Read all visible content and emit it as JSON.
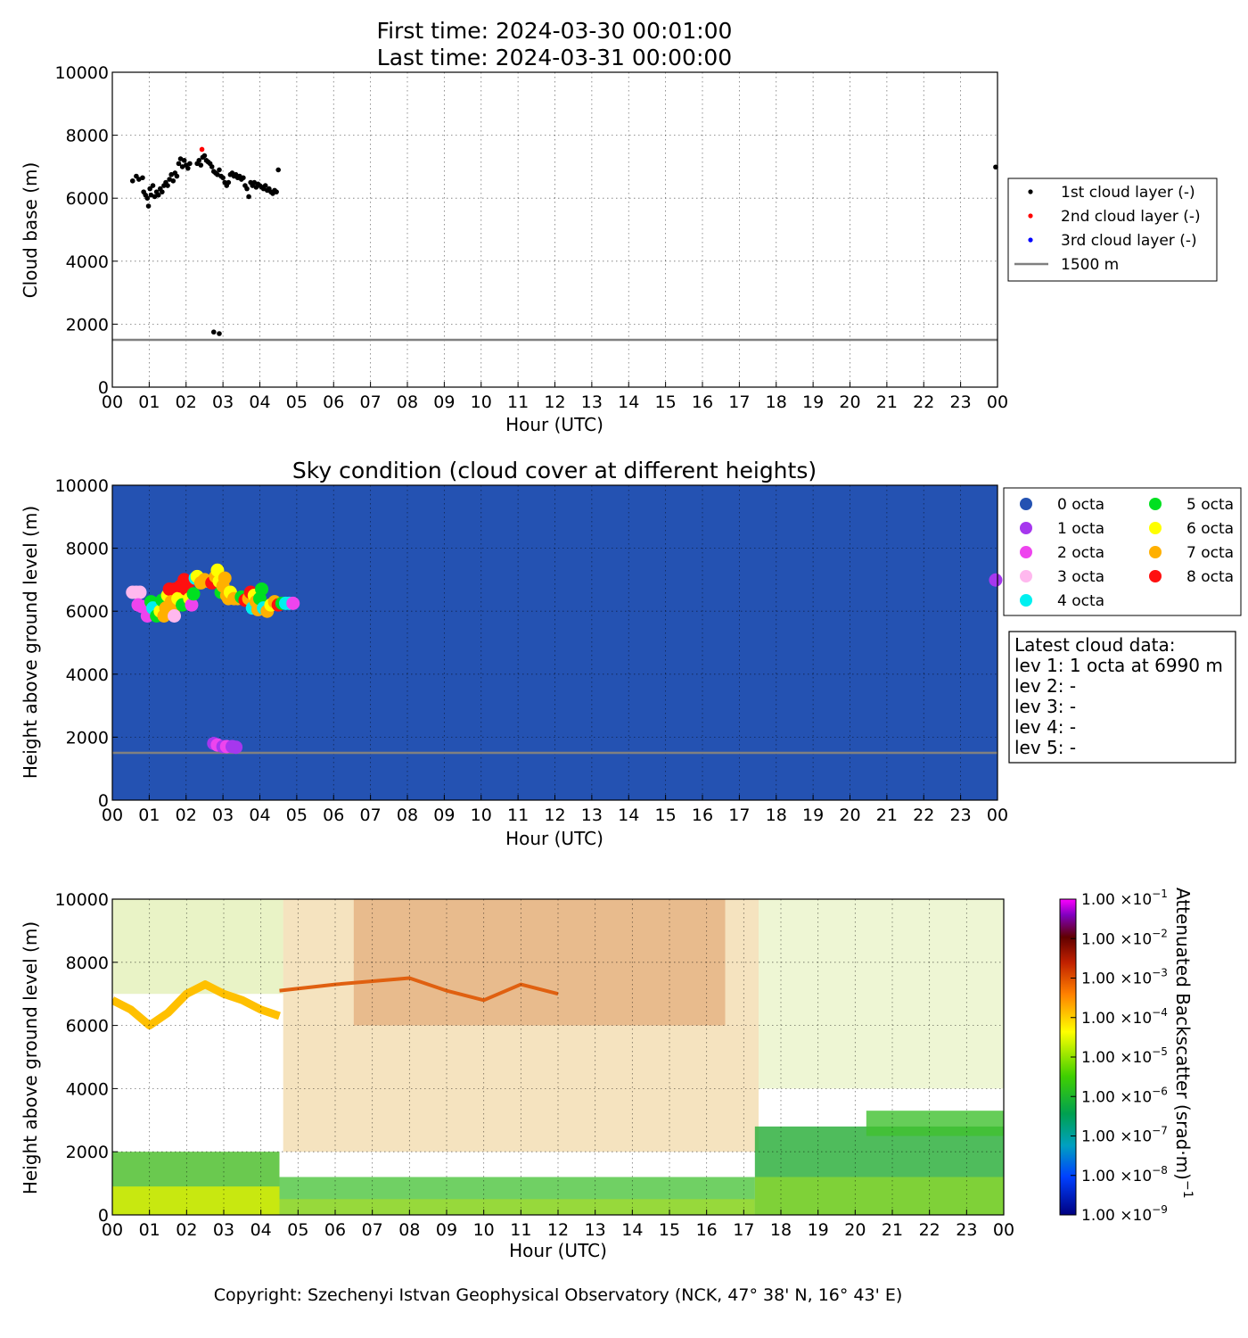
{
  "header": {
    "line1": "First time: 2024-03-30 00:01:00",
    "line2": "Last time: 2024-03-31 00:00:00"
  },
  "footer": {
    "copyright": "Copyright: Szechenyi Istvan Geophysical Observatory (NCK, 47° 38' N, 16° 43' E)"
  },
  "colors": {
    "layer1": "#000000",
    "layer2": "#ff0000",
    "layer3": "#0000ff",
    "ref_line": "#808080",
    "sky_background": "#2452b2"
  },
  "latest_cloud": {
    "title": "Latest cloud data:",
    "lines": [
      "lev 1: 1 octa at 6990 m",
      "lev 2: -",
      "lev 3: -",
      "lev 4: -",
      "lev 5: -"
    ]
  },
  "chart_data": [
    {
      "type": "scatter",
      "title": "",
      "xlabel": "Hour (UTC)",
      "ylabel": "Cloud base (m)",
      "x_tick_labels": [
        "00",
        "01",
        "02",
        "03",
        "04",
        "05",
        "06",
        "07",
        "08",
        "09",
        "10",
        "11",
        "12",
        "13",
        "14",
        "15",
        "16",
        "17",
        "18",
        "19",
        "20",
        "21",
        "22",
        "23",
        "00"
      ],
      "y_ticks": [
        0,
        2000,
        4000,
        6000,
        8000,
        10000
      ],
      "xlim": [
        0,
        24
      ],
      "ylim": [
        0,
        10000
      ],
      "grid": true,
      "legend_position": "right",
      "reference_line": {
        "name": "1500 m",
        "y": 1500
      },
      "series": [
        {
          "name": "1st cloud layer (-)",
          "color": "#000000",
          "points": [
            [
              0.55,
              6550
            ],
            [
              0.65,
              6700
            ],
            [
              0.72,
              6600
            ],
            [
              0.82,
              6650
            ],
            [
              0.85,
              6200
            ],
            [
              0.9,
              6100
            ],
            [
              0.95,
              6000
            ],
            [
              0.98,
              5750
            ],
            [
              1.02,
              6300
            ],
            [
              1.05,
              6100
            ],
            [
              1.1,
              6400
            ],
            [
              1.15,
              6050
            ],
            [
              1.2,
              6200
            ],
            [
              1.25,
              6100
            ],
            [
              1.3,
              6300
            ],
            [
              1.35,
              6200
            ],
            [
              1.4,
              6400
            ],
            [
              1.45,
              6500
            ],
            [
              1.5,
              6400
            ],
            [
              1.55,
              6600
            ],
            [
              1.6,
              6750
            ],
            [
              1.65,
              6550
            ],
            [
              1.7,
              6800
            ],
            [
              1.75,
              6700
            ],
            [
              1.8,
              7100
            ],
            [
              1.85,
              7250
            ],
            [
              1.9,
              7000
            ],
            [
              1.95,
              7200
            ],
            [
              2.0,
              7050
            ],
            [
              2.05,
              6950
            ],
            [
              2.1,
              7100
            ],
            [
              2.3,
              7100
            ],
            [
              2.35,
              7200
            ],
            [
              2.4,
              7050
            ],
            [
              2.45,
              7300
            ],
            [
              2.5,
              7350
            ],
            [
              2.55,
              7200
            ],
            [
              2.6,
              7150
            ],
            [
              2.65,
              7100
            ],
            [
              2.7,
              7000
            ],
            [
              2.75,
              6850
            ],
            [
              2.8,
              6800
            ],
            [
              2.85,
              6750
            ],
            [
              2.9,
              6900
            ],
            [
              2.95,
              6700
            ],
            [
              3.0,
              6650
            ],
            [
              3.05,
              6500
            ],
            [
              3.1,
              6400
            ],
            [
              3.15,
              6500
            ],
            [
              3.2,
              6750
            ],
            [
              3.25,
              6800
            ],
            [
              3.3,
              6700
            ],
            [
              3.35,
              6750
            ],
            [
              3.4,
              6650
            ],
            [
              3.45,
              6700
            ],
            [
              3.5,
              6600
            ],
            [
              3.55,
              6650
            ],
            [
              3.6,
              6400
            ],
            [
              3.65,
              6300
            ],
            [
              3.7,
              6050
            ],
            [
              3.75,
              6500
            ],
            [
              3.8,
              6400
            ],
            [
              3.85,
              6500
            ],
            [
              3.9,
              6350
            ],
            [
              3.95,
              6450
            ],
            [
              4.0,
              6400
            ],
            [
              4.05,
              6350
            ],
            [
              4.1,
              6300
            ],
            [
              4.15,
              6400
            ],
            [
              4.2,
              6250
            ],
            [
              4.25,
              6300
            ],
            [
              4.3,
              6200
            ],
            [
              4.35,
              6150
            ],
            [
              4.4,
              6250
            ],
            [
              4.45,
              6200
            ],
            [
              4.5,
              6900
            ],
            [
              2.75,
              1750
            ],
            [
              2.9,
              1700
            ],
            [
              23.95,
              6990
            ]
          ]
        },
        {
          "name": "2nd cloud layer (-)",
          "color": "#ff0000",
          "points": [
            [
              2.43,
              7550
            ]
          ]
        },
        {
          "name": "3rd cloud layer (-)",
          "color": "#0000ff",
          "points": []
        }
      ]
    },
    {
      "type": "scatter",
      "title": "Sky condition (cloud cover at different heights)",
      "xlabel": "Hour (UTC)",
      "ylabel": "Height above ground level (m)",
      "x_tick_labels": [
        "00",
        "01",
        "02",
        "03",
        "04",
        "05",
        "06",
        "07",
        "08",
        "09",
        "10",
        "11",
        "12",
        "13",
        "14",
        "15",
        "16",
        "17",
        "18",
        "19",
        "20",
        "21",
        "22",
        "23",
        "00"
      ],
      "y_ticks": [
        0,
        2000,
        4000,
        6000,
        8000,
        10000
      ],
      "xlim": [
        0,
        24
      ],
      "ylim": [
        0,
        10000
      ],
      "grid": true,
      "legend_position": "right",
      "reference_line": {
        "name": "1500 m",
        "y": 1500
      },
      "octa_legend": [
        {
          "name": "0 octa",
          "color": "#2452b2"
        },
        {
          "name": "1 octa",
          "color": "#a637ee"
        },
        {
          "name": "2 octa",
          "color": "#ee44ee"
        },
        {
          "name": "3 octa",
          "color": "#ffb8ee"
        },
        {
          "name": "4 octa",
          "color": "#00f0f0"
        },
        {
          "name": "5 octa",
          "color": "#00e020"
        },
        {
          "name": "6 octa",
          "color": "#ffff00"
        },
        {
          "name": "7 octa",
          "color": "#ffb000"
        },
        {
          "name": "8 octa",
          "color": "#ff1010"
        }
      ],
      "points": [
        [
          0.55,
          6600,
          3
        ],
        [
          0.65,
          6600,
          3
        ],
        [
          0.75,
          6600,
          3
        ],
        [
          0.7,
          6200,
          2
        ],
        [
          0.8,
          6150,
          2
        ],
        [
          0.95,
          5850,
          2
        ],
        [
          1.05,
          6300,
          5
        ],
        [
          1.1,
          6100,
          4
        ],
        [
          1.2,
          5850,
          5
        ],
        [
          1.3,
          6000,
          6
        ],
        [
          1.35,
          6350,
          5
        ],
        [
          1.4,
          5850,
          7
        ],
        [
          1.45,
          6100,
          7
        ],
        [
          1.5,
          6500,
          6
        ],
        [
          1.55,
          6700,
          8
        ],
        [
          1.6,
          6300,
          7
        ],
        [
          1.65,
          6000,
          7
        ],
        [
          1.68,
          5850,
          3
        ],
        [
          1.7,
          6700,
          8
        ],
        [
          1.78,
          6400,
          6
        ],
        [
          1.85,
          6800,
          8
        ],
        [
          1.9,
          6200,
          5
        ],
        [
          1.95,
          7000,
          8
        ],
        [
          2.0,
          6700,
          8
        ],
        [
          2.05,
          6900,
          8
        ],
        [
          2.1,
          6400,
          6
        ],
        [
          2.15,
          6200,
          2
        ],
        [
          2.2,
          6550,
          5
        ],
        [
          2.25,
          7050,
          4
        ],
        [
          2.3,
          7100,
          6
        ],
        [
          2.4,
          6900,
          7
        ],
        [
          2.5,
          7000,
          7
        ],
        [
          2.6,
          6950,
          7
        ],
        [
          2.7,
          6900,
          8
        ],
        [
          2.8,
          7100,
          7
        ],
        [
          2.85,
          7300,
          6
        ],
        [
          2.9,
          6950,
          6
        ],
        [
          2.95,
          6600,
          5
        ],
        [
          3.0,
          6800,
          7
        ],
        [
          3.05,
          7050,
          7
        ],
        [
          3.1,
          6500,
          7
        ],
        [
          3.15,
          6400,
          7
        ],
        [
          3.2,
          6600,
          6
        ],
        [
          3.3,
          6400,
          7
        ],
        [
          3.4,
          6400,
          7
        ],
        [
          3.5,
          6450,
          5
        ],
        [
          3.6,
          6350,
          8
        ],
        [
          3.7,
          6400,
          7
        ],
        [
          3.75,
          6600,
          8
        ],
        [
          3.8,
          6100,
          4
        ],
        [
          3.85,
          6500,
          6
        ],
        [
          3.9,
          6300,
          7
        ],
        [
          3.95,
          6050,
          7
        ],
        [
          4.0,
          6400,
          5
        ],
        [
          4.05,
          6700,
          5
        ],
        [
          4.1,
          6100,
          4
        ],
        [
          4.2,
          6000,
          7
        ],
        [
          4.3,
          6200,
          6
        ],
        [
          4.4,
          6300,
          7
        ],
        [
          4.5,
          6200,
          8
        ],
        [
          4.6,
          6250,
          5
        ],
        [
          4.7,
          6250,
          4
        ],
        [
          4.8,
          6250,
          4
        ],
        [
          4.9,
          6250,
          2
        ],
        [
          2.75,
          1800,
          1
        ],
        [
          2.85,
          1750,
          2
        ],
        [
          3.0,
          1700,
          1
        ],
        [
          3.1,
          1700,
          2
        ],
        [
          3.25,
          1700,
          1
        ],
        [
          3.35,
          1680,
          1
        ],
        [
          23.95,
          6990,
          1
        ]
      ]
    },
    {
      "type": "heatmap",
      "title": "",
      "xlabel": "Hour (UTC)",
      "ylabel": "Height above ground level (m)",
      "x_tick_labels": [
        "00",
        "01",
        "02",
        "03",
        "04",
        "05",
        "06",
        "07",
        "08",
        "09",
        "10",
        "11",
        "12",
        "13",
        "14",
        "15",
        "16",
        "17",
        "18",
        "19",
        "20",
        "21",
        "22",
        "23",
        "00"
      ],
      "y_ticks": [
        0,
        2000,
        4000,
        6000,
        8000,
        10000
      ],
      "xlim": [
        0,
        24
      ],
      "ylim": [
        0,
        10000
      ],
      "grid": true,
      "colorbar": {
        "label": "Attenuated Backscatter (srad·m)",
        "label_exponent": "−1",
        "scale": "log",
        "range": [
          1e-09,
          0.1
        ],
        "ticks": [
          {
            "mantissa": "1.00",
            "exponent": "−9"
          },
          {
            "mantissa": "1.00",
            "exponent": "−8"
          },
          {
            "mantissa": "1.00",
            "exponent": "−7"
          },
          {
            "mantissa": "1.00",
            "exponent": "−6"
          },
          {
            "mantissa": "1.00",
            "exponent": "−5"
          },
          {
            "mantissa": "1.00",
            "exponent": "−4"
          },
          {
            "mantissa": "1.00",
            "exponent": "−3"
          },
          {
            "mantissa": "1.00",
            "exponent": "−2"
          },
          {
            "mantissa": "1.00",
            "exponent": "−1"
          }
        ],
        "colors": [
          "#000080",
          "#0040ff",
          "#00a0c0",
          "#00a050",
          "#40d000",
          "#ffff00",
          "#ff8000",
          "#c02000",
          "#600000",
          "#8000c0",
          "#ff00ff"
        ]
      }
    }
  ]
}
